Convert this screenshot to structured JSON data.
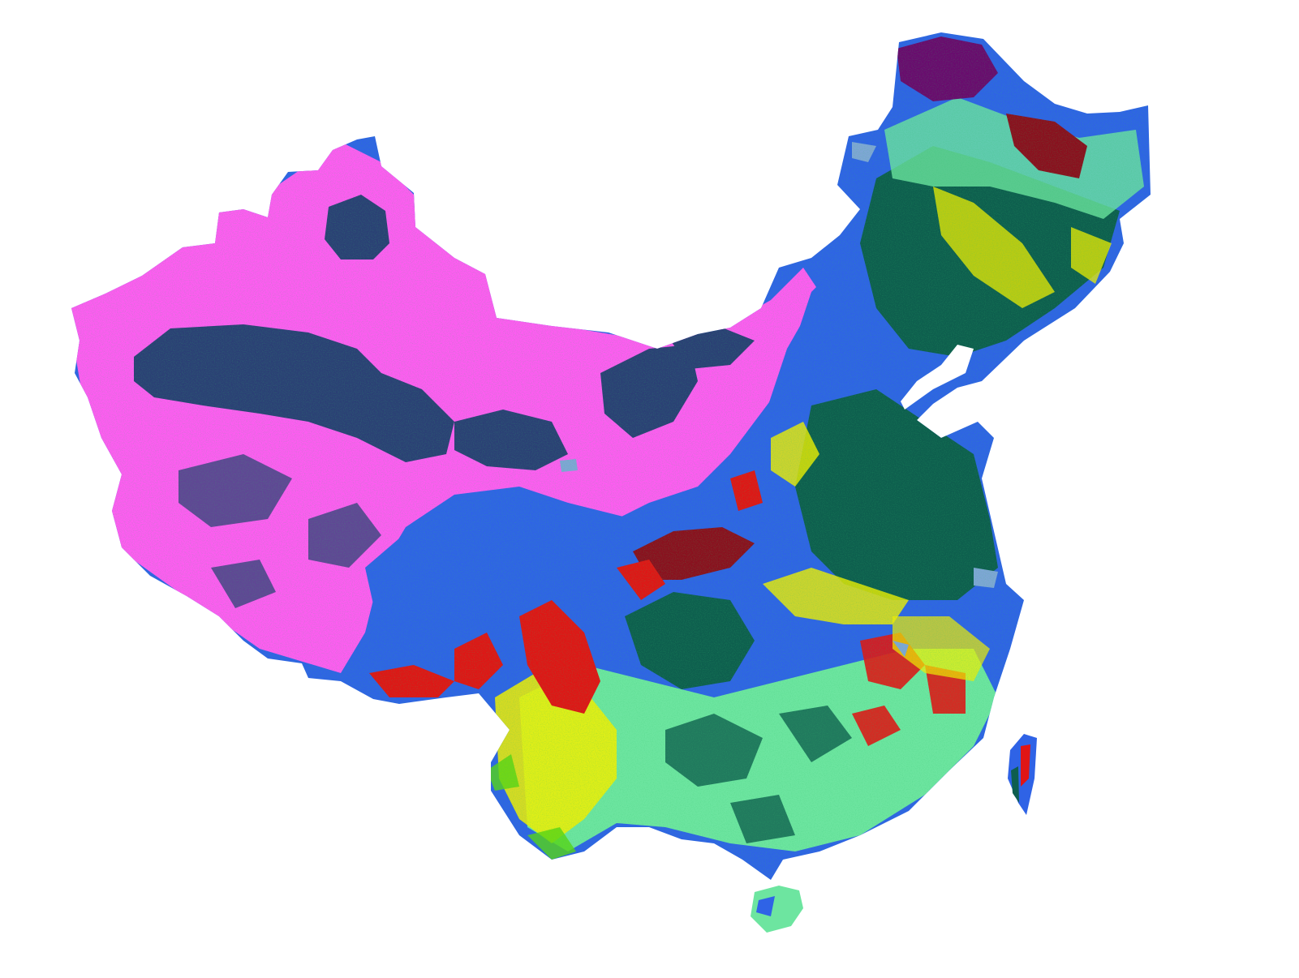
{
  "map": {
    "palette": {
      "desert": "#ff5cf2",
      "basin": "#2b3f75",
      "steppe": "#2f63e6",
      "water": "#7fa6d6",
      "forest": "#0e5e4e",
      "mixed": "#6de5a0",
      "green": "#2fc36a",
      "yellow": "#f3f000",
      "orange": "#f3a000",
      "red": "#e01515",
      "darkred": "#8b0f1e",
      "purple": "#6a0a6e",
      "lime": "#58d414"
    }
  }
}
